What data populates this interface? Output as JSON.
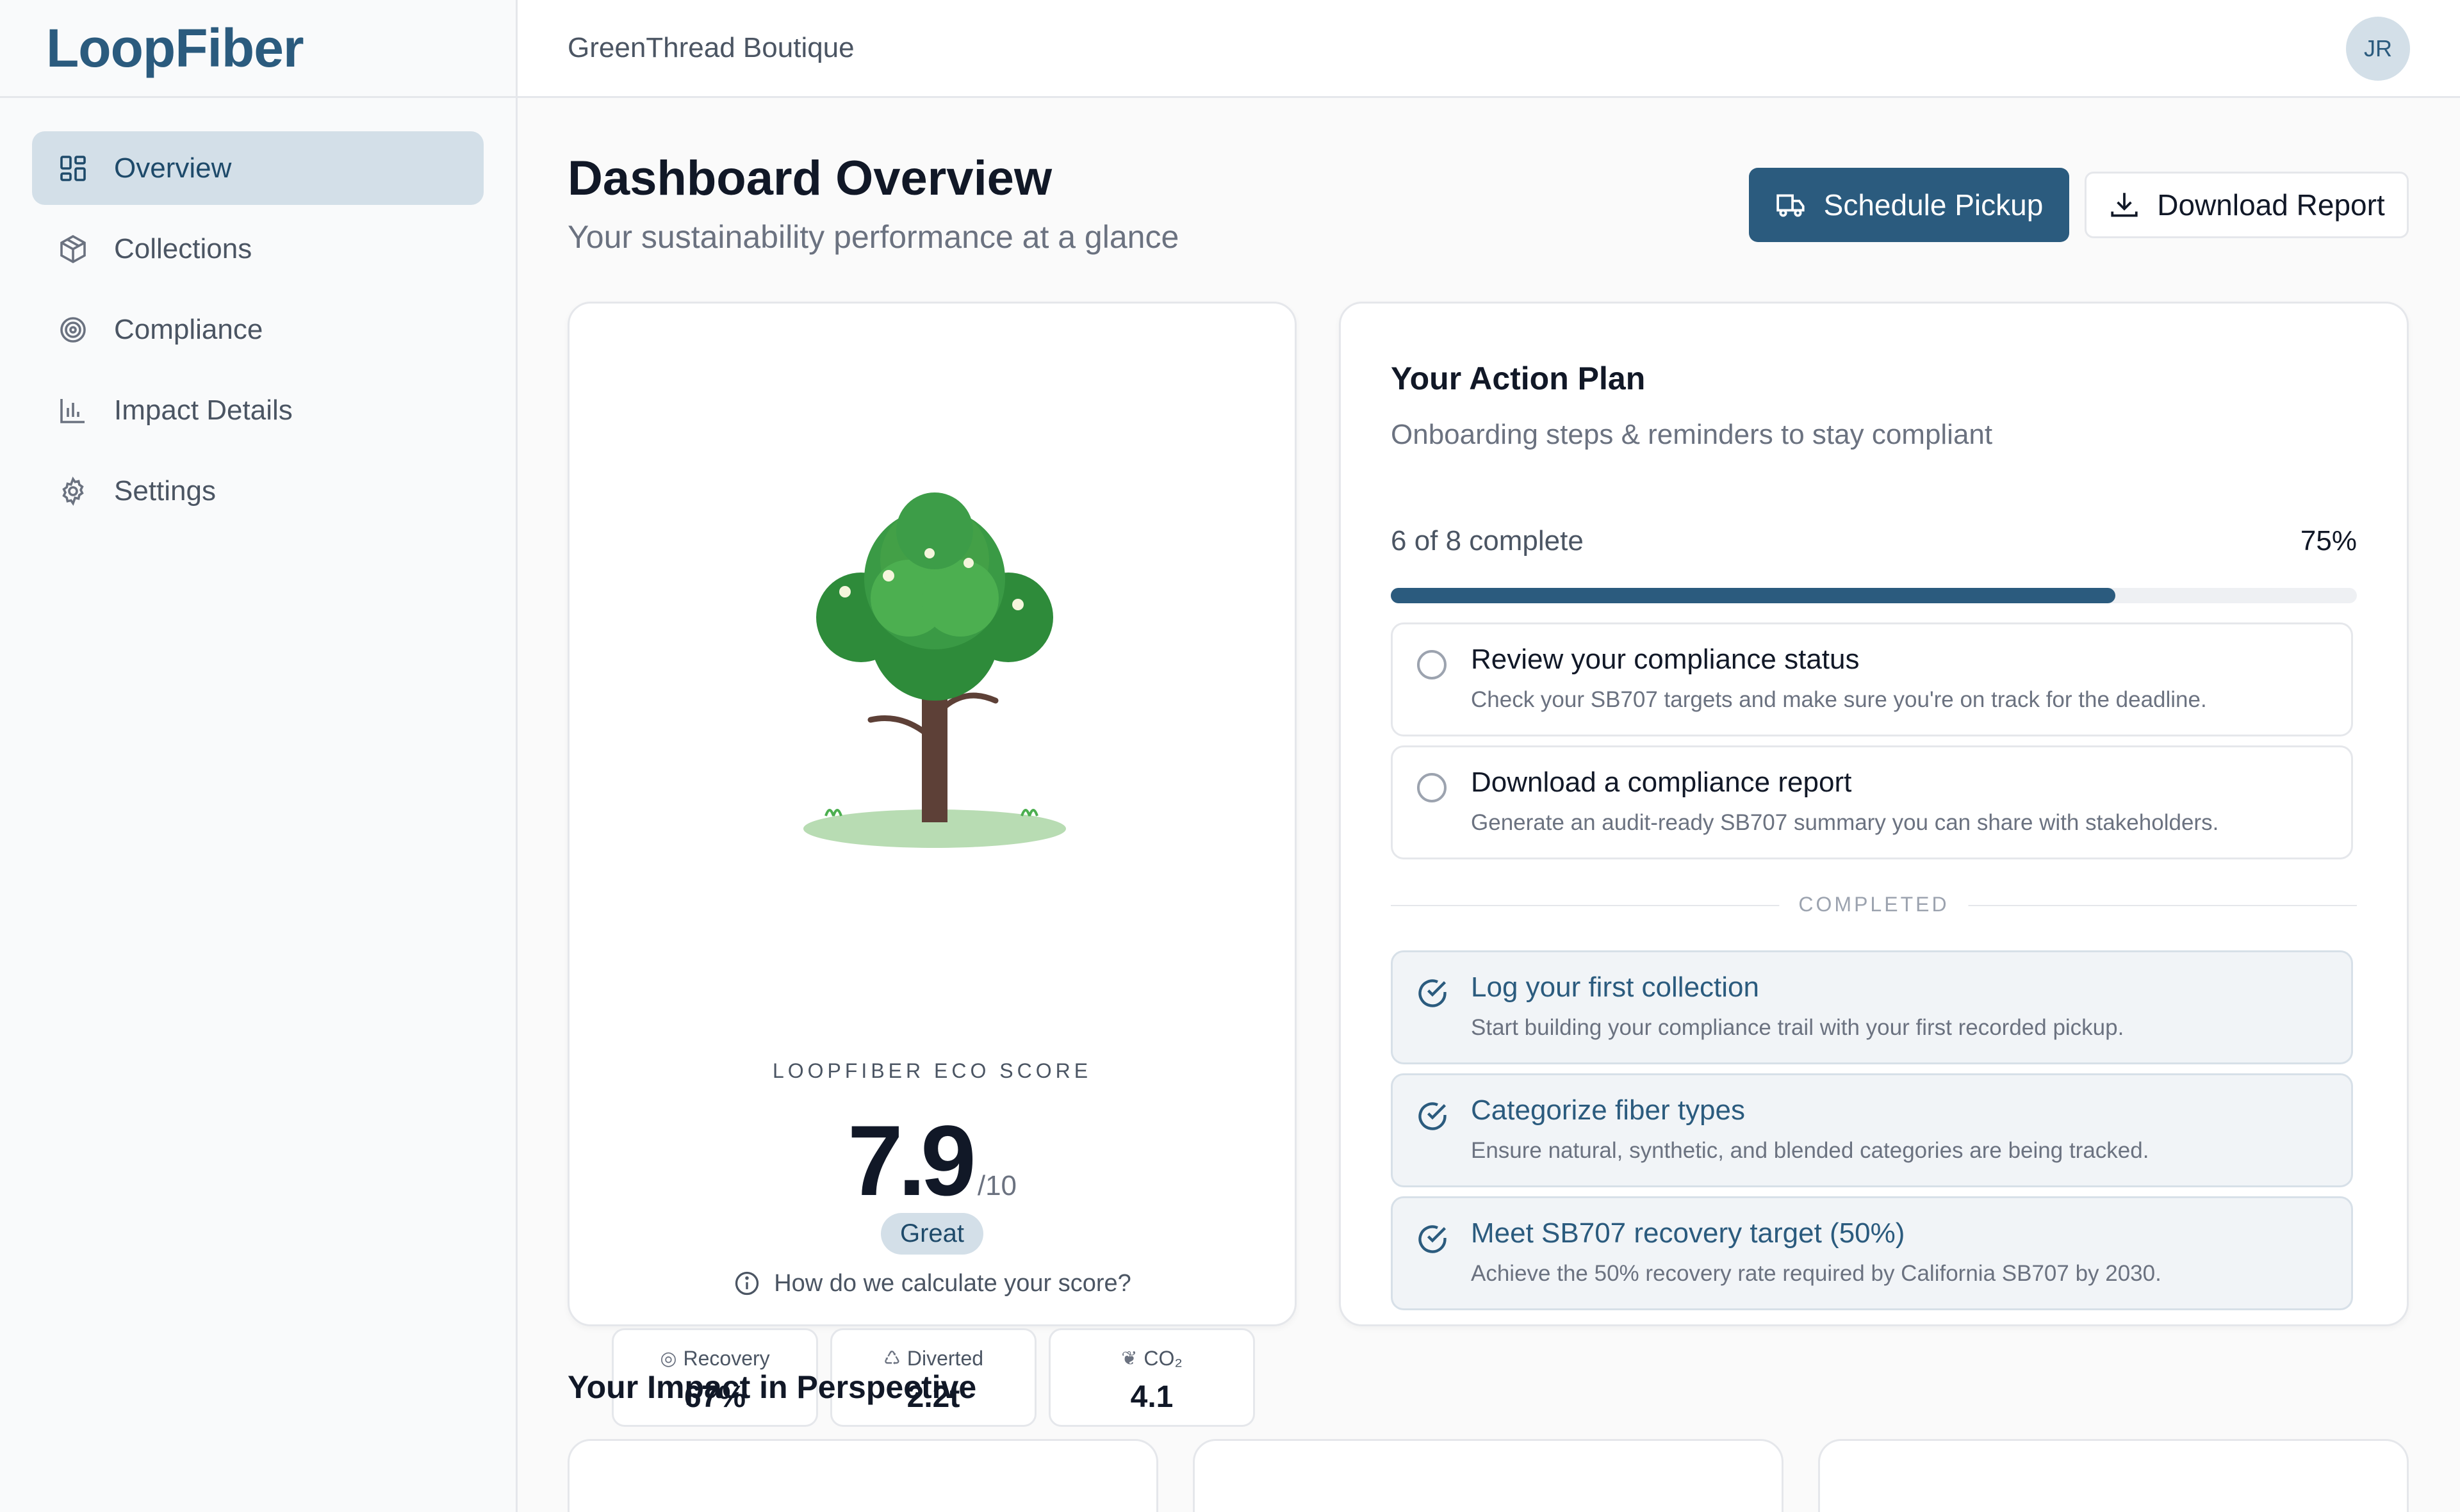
{
  "app": {
    "logo_text": "LoopFiber",
    "store_name": "GreenThread Boutique",
    "user_initials": "JR"
  },
  "sidebar": {
    "items": [
      {
        "label": "Overview",
        "icon": "grid-icon",
        "active": true
      },
      {
        "label": "Collections",
        "icon": "box-icon",
        "active": false
      },
      {
        "label": "Compliance",
        "icon": "target-icon",
        "active": false
      },
      {
        "label": "Impact Details",
        "icon": "bar-chart-icon",
        "active": false
      },
      {
        "label": "Settings",
        "icon": "gear-icon",
        "active": false
      }
    ]
  },
  "header": {
    "title": "Dashboard Overview",
    "subtitle": "Your sustainability performance at a glance",
    "schedule_label": "Schedule Pickup",
    "download_label": "Download Report"
  },
  "eco": {
    "label": "LOOPFIBER ECO SCORE",
    "score": "7.9",
    "denominator": "/10",
    "rating": "Great",
    "help_text": "How do we calculate your score?",
    "metrics": [
      {
        "label": "Recovery",
        "value": "67%",
        "icon": "target-icon"
      },
      {
        "label": "Diverted",
        "value": "2.2t",
        "icon": "recycle-icon"
      },
      {
        "label": "CO₂",
        "value": "4.1",
        "icon": "leaf-icon"
      }
    ]
  },
  "plan": {
    "title": "Your Action Plan",
    "subtitle": "Onboarding steps & reminders to stay compliant",
    "progress_label": "6 of 8 complete",
    "progress_percent": "75%",
    "progress_value": 0.75,
    "completed_label": "COMPLETED",
    "pending": [
      {
        "title": "Review your compliance status",
        "desc": "Check your SB707 targets and make sure you're on track for the deadline."
      },
      {
        "title": "Download a compliance report",
        "desc": "Generate an audit-ready SB707 summary you can share with stakeholders."
      }
    ],
    "completed": [
      {
        "title": "Log your first collection",
        "desc": "Start building your compliance trail with your first recorded pickup."
      },
      {
        "title": "Categorize fiber types",
        "desc": "Ensure natural, synthetic, and blended categories are being tracked."
      },
      {
        "title": "Meet SB707 recovery target (50%)",
        "desc": "Achieve the 50% recovery rate required by California SB707 by 2030."
      }
    ]
  },
  "impact": {
    "title": "Your Impact in Perspective"
  },
  "colors": {
    "brand": "#2b5b7e",
    "active_bg": "#d3dfe8"
  }
}
